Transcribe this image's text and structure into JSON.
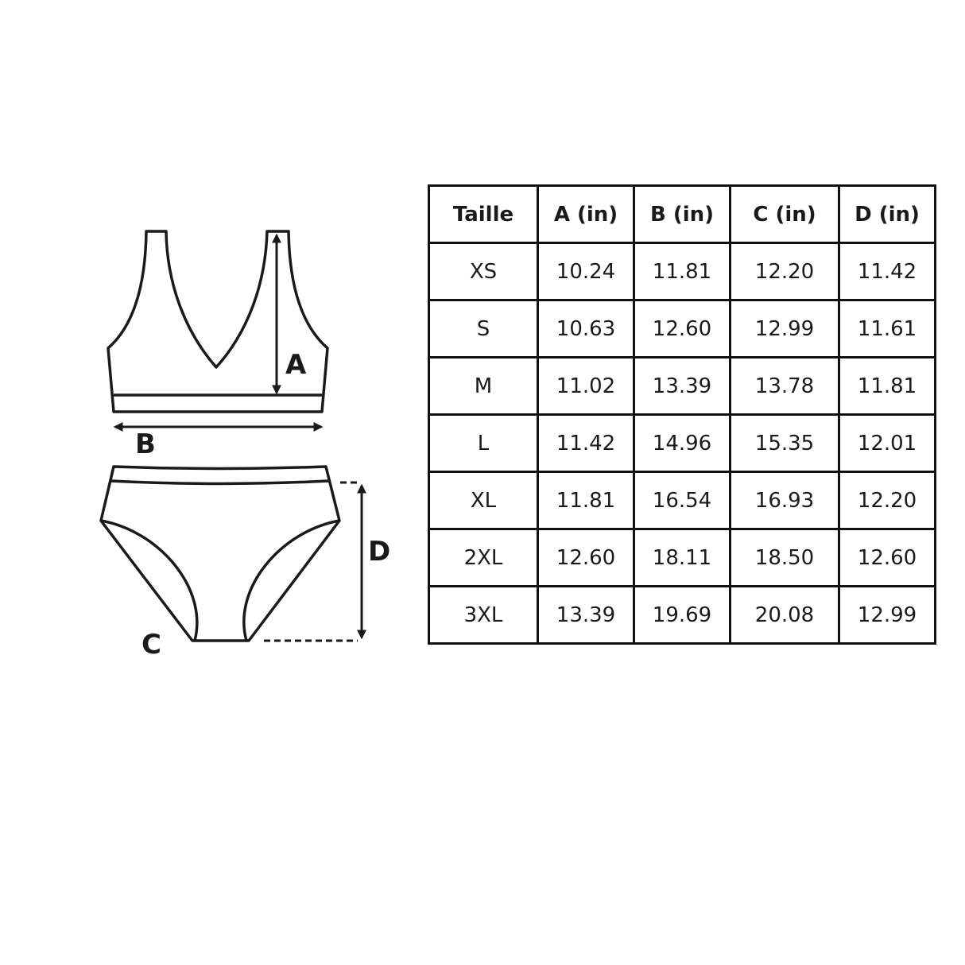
{
  "diagram": {
    "labels": {
      "a": "A",
      "b": "B",
      "c": "C",
      "d": "D"
    }
  },
  "size_table": {
    "headers": [
      "Taille",
      "A (in)",
      "B (in)",
      "C (in)",
      "D (in)"
    ],
    "rows": [
      [
        "XS",
        "10.24",
        "11.81",
        "12.20",
        "11.42"
      ],
      [
        "S",
        "10.63",
        "12.60",
        "12.99",
        "11.61"
      ],
      [
        "M",
        "11.02",
        "13.39",
        "13.78",
        "11.81"
      ],
      [
        "L",
        "11.42",
        "14.96",
        "15.35",
        "12.01"
      ],
      [
        "XL",
        "11.81",
        "16.54",
        "16.93",
        "12.20"
      ],
      [
        "2XL",
        "12.60",
        "18.11",
        "18.50",
        "12.60"
      ],
      [
        "3XL",
        "13.39",
        "19.69",
        "20.08",
        "12.99"
      ]
    ]
  }
}
